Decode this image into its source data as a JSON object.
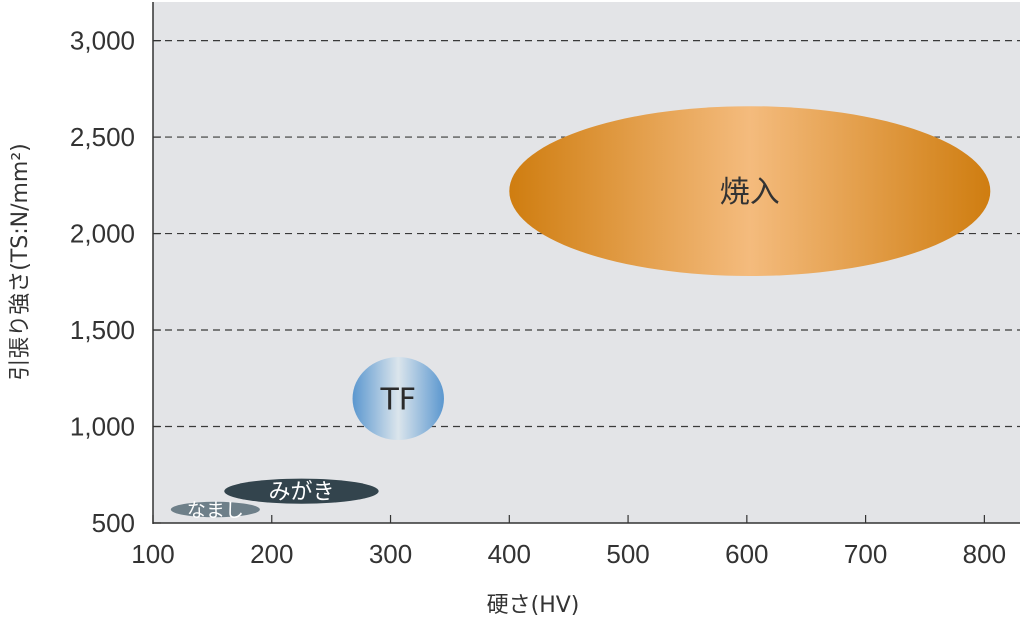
{
  "chart_data": {
    "type": "scatter",
    "title": "",
    "xlabel": "硬さ(HV)",
    "ylabel": "引張り強さ(TS:N/mm²)",
    "xlim": [
      100,
      830
    ],
    "ylim": [
      500,
      3200
    ],
    "xticks": [
      100,
      200,
      300,
      400,
      500,
      600,
      700,
      800
    ],
    "yticks": [
      500,
      1000,
      1500,
      2000,
      2500,
      3000
    ],
    "xtick_labels": [
      "100",
      "200",
      "300",
      "400",
      "500",
      "600",
      "700",
      "800"
    ],
    "ytick_labels": [
      "500",
      "1,000",
      "1,500",
      "2,000",
      "2,500",
      "3,000"
    ],
    "grid": "horizontal-dashed",
    "regions": [
      {
        "name": "焼入",
        "x_range": [
          400,
          805
        ],
        "y_range": [
          1780,
          2660
        ],
        "color": "#d9892a"
      },
      {
        "name": "TF",
        "x_range": [
          268,
          345
        ],
        "y_range": [
          930,
          1360
        ],
        "color": "#5d9ad2"
      },
      {
        "name": "みがき",
        "x_range": [
          160,
          290
        ],
        "y_range": [
          600,
          730
        ],
        "color": "#33444d"
      },
      {
        "name": "なまし",
        "x_range": [
          115,
          190
        ],
        "y_range": [
          530,
          610
        ],
        "color": "#6e7f89"
      }
    ]
  }
}
